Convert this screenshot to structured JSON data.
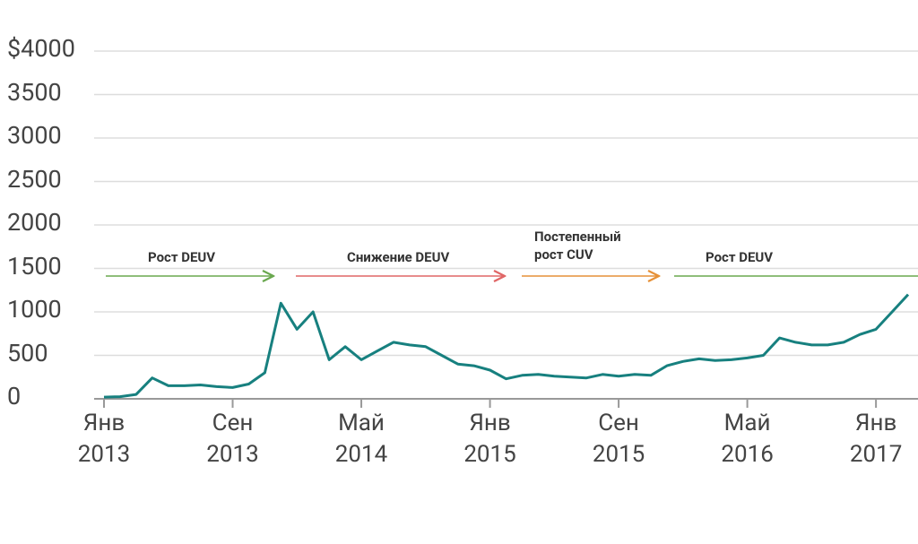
{
  "chart_data": {
    "type": "line",
    "x": [
      "2013-01",
      "2013-02",
      "2013-03",
      "2013-04",
      "2013-05",
      "2013-06",
      "2013-07",
      "2013-08",
      "2013-09",
      "2013-10",
      "2013-11",
      "2013-12",
      "2014-01",
      "2014-02",
      "2014-03",
      "2014-04",
      "2014-05",
      "2014-06",
      "2014-07",
      "2014-08",
      "2014-09",
      "2014-10",
      "2014-11",
      "2014-12",
      "2015-01",
      "2015-02",
      "2015-03",
      "2015-04",
      "2015-05",
      "2015-06",
      "2015-07",
      "2015-08",
      "2015-09",
      "2015-10",
      "2015-11",
      "2015-12",
      "2016-01",
      "2016-02",
      "2016-03",
      "2016-04",
      "2016-05",
      "2016-06",
      "2016-07",
      "2016-08",
      "2016-09",
      "2016-10",
      "2016-11",
      "2016-12",
      "2017-01",
      "2017-02",
      "2017-03"
    ],
    "series": [
      {
        "color": "#17807f",
        "values": [
          20,
          25,
          50,
          240,
          150,
          150,
          160,
          140,
          130,
          170,
          300,
          1100,
          800,
          1000,
          450,
          600,
          450,
          550,
          650,
          620,
          600,
          500,
          400,
          380,
          330,
          230,
          270,
          280,
          260,
          250,
          240,
          280,
          260,
          280,
          270,
          380,
          430,
          460,
          440,
          450,
          470,
          500,
          700,
          650,
          620,
          620,
          650,
          740,
          800,
          1000,
          1200
        ]
      }
    ],
    "xlim": [
      "2013-01",
      "2017-03"
    ],
    "xticks": [
      {
        "value": "2013-01",
        "label": "Янв\n2013"
      },
      {
        "value": "2013-09",
        "label": "Сен\n2013"
      },
      {
        "value": "2014-05",
        "label": "Май\n2014"
      },
      {
        "value": "2015-01",
        "label": "Янв\n2015"
      },
      {
        "value": "2015-09",
        "label": "Сен\n2015"
      },
      {
        "value": "2016-05",
        "label": "Май\n2016"
      },
      {
        "value": "2017-01",
        "label": "Янв\n2017"
      }
    ],
    "ylim": [
      0,
      4000
    ],
    "yticks": [
      0,
      500,
      1000,
      1500,
      2000,
      2500,
      3000,
      3500,
      {
        "value": 4000,
        "label": "$4000"
      }
    ],
    "grid": true,
    "annotations": [
      {
        "text": "Рост DEUV",
        "color": "#6aa84f"
      },
      {
        "text": "Снижение DEUV",
        "color": "#e06666"
      },
      {
        "text": "Постепенный\nрост CUV",
        "color": "#e69138"
      },
      {
        "text": "Рост DEUV",
        "color": "#6aa84f"
      }
    ]
  }
}
